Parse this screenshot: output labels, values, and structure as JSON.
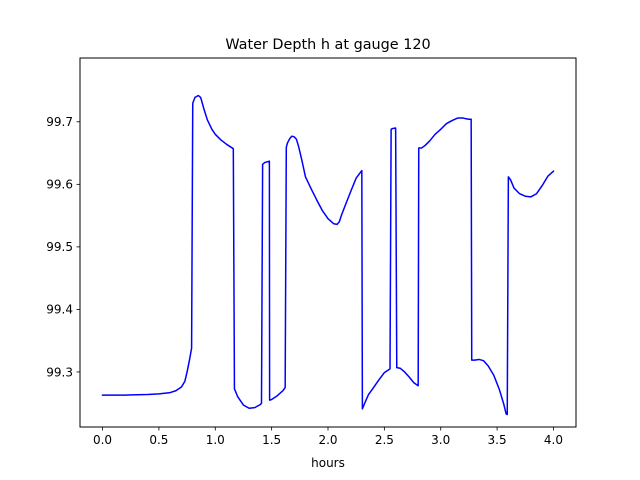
{
  "chart_data": {
    "type": "line",
    "title": "Water Depth h at gauge 120",
    "xlabel": "hours",
    "ylabel": "",
    "xlim": [
      -0.2,
      4.2
    ],
    "ylim": [
      99.212,
      99.802
    ],
    "xticks": [
      0.0,
      0.5,
      1.0,
      1.5,
      2.0,
      2.5,
      3.0,
      3.5,
      4.0
    ],
    "xtick_labels": [
      "0.0",
      "0.5",
      "1.0",
      "1.5",
      "2.0",
      "2.5",
      "3.0",
      "3.5",
      "4.0"
    ],
    "yticks": [
      99.3,
      99.4,
      99.5,
      99.6,
      99.7
    ],
    "ytick_labels": [
      "99.3",
      "99.4",
      "99.5",
      "99.6",
      "99.7"
    ],
    "grid": false,
    "series": [
      {
        "color": "#0000ff",
        "x": [
          0.0,
          0.2,
          0.4,
          0.5,
          0.6,
          0.65,
          0.7,
          0.73,
          0.75,
          0.77,
          0.79,
          0.8,
          0.801,
          0.82,
          0.85,
          0.87,
          0.88,
          0.9,
          0.93,
          0.97,
          1.0,
          1.05,
          1.1,
          1.16,
          1.17,
          1.2,
          1.25,
          1.3,
          1.35,
          1.4,
          1.41,
          1.42,
          1.44,
          1.46,
          1.48,
          1.482,
          1.5,
          1.55,
          1.6,
          1.62,
          1.63,
          1.64,
          1.66,
          1.68,
          1.7,
          1.72,
          1.74,
          1.77,
          1.8,
          1.85,
          1.9,
          1.95,
          2.0,
          2.05,
          2.08,
          2.1,
          2.12,
          2.15,
          2.2,
          2.25,
          2.3,
          2.305,
          2.33,
          2.36,
          2.4,
          2.45,
          2.5,
          2.55,
          2.56,
          2.57,
          2.6,
          2.61,
          2.64,
          2.68,
          2.72,
          2.76,
          2.8,
          2.805,
          2.83,
          2.86,
          2.9,
          2.95,
          3.0,
          3.05,
          3.1,
          3.15,
          3.2,
          3.22,
          3.25,
          3.27,
          3.275,
          3.3,
          3.34,
          3.38,
          3.42,
          3.47,
          3.52,
          3.56,
          3.58,
          3.59,
          3.6,
          3.62,
          3.65,
          3.7,
          3.75,
          3.8,
          3.85,
          3.9,
          3.95,
          4.0
        ],
        "y": [
          99.263,
          99.263,
          99.264,
          99.265,
          99.267,
          99.27,
          99.276,
          99.285,
          99.3,
          99.318,
          99.338,
          99.725,
          99.73,
          99.739,
          99.742,
          99.739,
          99.733,
          99.72,
          99.703,
          99.688,
          99.68,
          99.671,
          99.664,
          99.657,
          99.273,
          99.26,
          99.247,
          99.242,
          99.243,
          99.248,
          99.25,
          99.632,
          99.635,
          99.636,
          99.637,
          99.255,
          99.256,
          99.262,
          99.27,
          99.275,
          99.659,
          99.666,
          99.673,
          99.677,
          99.676,
          99.672,
          99.66,
          99.637,
          99.612,
          99.593,
          99.575,
          99.558,
          99.545,
          99.537,
          99.536,
          99.54,
          99.551,
          99.565,
          99.588,
          99.61,
          99.622,
          99.241,
          99.252,
          99.264,
          99.274,
          99.287,
          99.299,
          99.305,
          99.688,
          99.689,
          99.69,
          99.307,
          99.306,
          99.3,
          99.292,
          99.283,
          99.278,
          99.658,
          99.658,
          99.662,
          99.669,
          99.68,
          99.688,
          99.697,
          99.702,
          99.706,
          99.706,
          99.705,
          99.704,
          99.704,
          99.319,
          99.319,
          99.32,
          99.318,
          99.31,
          99.295,
          99.272,
          99.248,
          99.233,
          99.232,
          99.612,
          99.607,
          99.594,
          99.585,
          99.581,
          99.58,
          99.585,
          99.598,
          99.613,
          99.621
        ]
      }
    ]
  }
}
